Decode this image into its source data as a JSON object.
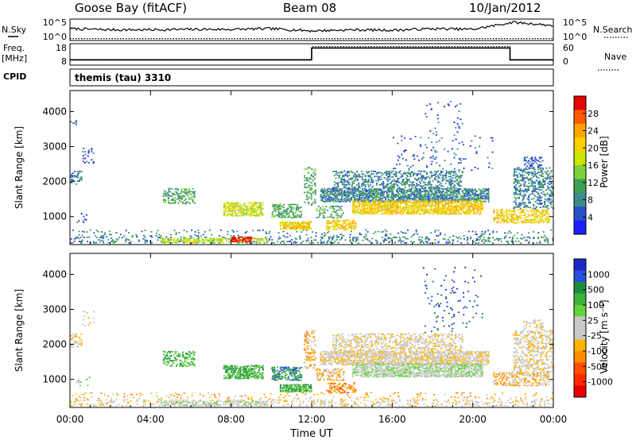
{
  "header": {
    "station": "Goose Bay (fitACF)",
    "beam": "Beam 08",
    "date": "10/Jan/2012"
  },
  "chart_data": [
    {
      "type": "line",
      "panel": "noise",
      "left_label": "N.Sky",
      "right_label": "N.Search",
      "left_ticks": [
        "10^5",
        "10^0"
      ],
      "right_ticks": [
        "10^5",
        "10^0"
      ],
      "x": [
        "00:00",
        "02:00",
        "04:00",
        "06:00",
        "08:00",
        "10:00",
        "12:00",
        "14:00",
        "16:00",
        "18:00",
        "20:00",
        "22:00",
        "23:59"
      ],
      "series": [
        {
          "name": "N.Sky",
          "style": "solid",
          "values": [
            0.55,
            0.5,
            0.5,
            0.52,
            0.52,
            0.55,
            0.45,
            0.5,
            0.48,
            0.55,
            0.52,
            0.85,
            0.7
          ]
        },
        {
          "name": "N.Search",
          "style": "dotted",
          "values": [
            0.05,
            0.05,
            0.05,
            0.05,
            0.05,
            0.05,
            0.05,
            0.05,
            0.05,
            0.05,
            0.05,
            0.05,
            0.05
          ]
        }
      ]
    },
    {
      "type": "line",
      "panel": "frequency",
      "left_label": "Freq.",
      "left_unit": "[MHz]",
      "right_label": "Nave",
      "left_ticks": [
        "18",
        "8"
      ],
      "right_ticks": [
        "60",
        "0"
      ],
      "ylim_left": [
        8,
        18
      ],
      "ylim_right": [
        0,
        60
      ],
      "series": [
        {
          "name": "Freq.",
          "style": "solid",
          "steps": [
            [
              0,
              10.5
            ],
            [
              12.0,
              10.5
            ],
            [
              12.0,
              16
            ],
            [
              21.85,
              16
            ],
            [
              21.85,
              10.5
            ],
            [
              24,
              10.5
            ]
          ]
        },
        {
          "name": "Nave",
          "style": "dotted",
          "steps": [
            [
              0,
              14
            ],
            [
              12.0,
              14
            ],
            [
              12.0,
              52
            ],
            [
              21.85,
              52
            ],
            [
              21.85,
              14
            ],
            [
              24,
              14
            ]
          ]
        }
      ]
    },
    {
      "type": "table",
      "panel": "cpid",
      "label": "CPID",
      "value": "themis (tau) 3310"
    },
    {
      "type": "heatmap",
      "panel": "power",
      "ylabel": "Slant Range [km]",
      "ylim": [
        200,
        4600
      ],
      "yticks": [
        1000,
        2000,
        3000,
        4000
      ],
      "xlim": [
        0,
        24
      ],
      "colorbar": {
        "label": "Power [dB]",
        "ticks": [
          "28",
          "24",
          "20",
          "16",
          "12",
          "8",
          "4"
        ],
        "colors": [
          "#e60000",
          "#ff5a00",
          "#ffa500",
          "#ffd000",
          "#c8e600",
          "#7dd23c",
          "#3ca050",
          "#3c8c8c",
          "#2850c8",
          "#1e1eff"
        ]
      },
      "regions": [
        {
          "t": [
            0.0,
            24.0
          ],
          "r": [
            220,
            420
          ],
          "dens": 0.28,
          "lvl": 2
        },
        {
          "t": [
            0.0,
            24.0
          ],
          "r": [
            420,
            620
          ],
          "dens": 0.12,
          "lvl": 2
        },
        {
          "t": [
            4.5,
            9.8
          ],
          "r": [
            230,
            380
          ],
          "dens": 0.6,
          "lvl": 5
        },
        {
          "t": [
            8.0,
            9.0
          ],
          "r": [
            260,
            420
          ],
          "dens": 0.9,
          "lvl": 9
        },
        {
          "t": [
            0.0,
            0.6
          ],
          "r": [
            1900,
            2300
          ],
          "dens": 0.5,
          "lvl": 2
        },
        {
          "t": [
            0.0,
            0.35
          ],
          "r": [
            3600,
            3800
          ],
          "dens": 0.25,
          "lvl": 1
        },
        {
          "t": [
            0.6,
            1.2
          ],
          "r": [
            2500,
            2950
          ],
          "dens": 0.25,
          "lvl": 1
        },
        {
          "t": [
            0.3,
            1.0
          ],
          "r": [
            800,
            1100
          ],
          "dens": 0.2,
          "lvl": 1
        },
        {
          "t": [
            4.6,
            6.2
          ],
          "r": [
            1350,
            1800
          ],
          "dens": 0.55,
          "lvl": 3
        },
        {
          "t": [
            7.6,
            9.6
          ],
          "r": [
            1000,
            1400
          ],
          "dens": 0.75,
          "lvl": 5
        },
        {
          "t": [
            10.0,
            11.5
          ],
          "r": [
            950,
            1350
          ],
          "dens": 0.6,
          "lvl": 3
        },
        {
          "t": [
            10.4,
            12.0
          ],
          "r": [
            620,
            850
          ],
          "dens": 0.85,
          "lvl": 6
        },
        {
          "t": [
            11.6,
            12.2
          ],
          "r": [
            1300,
            2400
          ],
          "dens": 0.45,
          "lvl": 3
        },
        {
          "t": [
            12.2,
            13.6
          ],
          "r": [
            950,
            1300
          ],
          "dens": 0.45,
          "lvl": 3
        },
        {
          "t": [
            12.7,
            14.2
          ],
          "r": [
            600,
            900
          ],
          "dens": 0.75,
          "lvl": 6
        },
        {
          "t": [
            12.4,
            20.8
          ],
          "r": [
            1400,
            1800
          ],
          "dens": 0.8,
          "lvl": 2
        },
        {
          "t": [
            14.0,
            20.5
          ],
          "r": [
            1050,
            1450
          ],
          "dens": 0.85,
          "lvl": 6
        },
        {
          "t": [
            13.0,
            19.5
          ],
          "r": [
            1800,
            2300
          ],
          "dens": 0.45,
          "lvl": 2
        },
        {
          "t": [
            16.0,
            21.0
          ],
          "r": [
            2300,
            3300
          ],
          "dens": 0.07,
          "lvl": 1
        },
        {
          "t": [
            17.5,
            19.5
          ],
          "r": [
            3300,
            4300
          ],
          "dens": 0.05,
          "lvl": 1
        },
        {
          "t": [
            21.0,
            23.8
          ],
          "r": [
            800,
            1200
          ],
          "dens": 0.6,
          "lvl": 6
        },
        {
          "t": [
            22.0,
            24.0
          ],
          "r": [
            1200,
            2400
          ],
          "dens": 0.5,
          "lvl": 2
        },
        {
          "t": [
            22.5,
            23.5
          ],
          "r": [
            2400,
            2700
          ],
          "dens": 0.35,
          "lvl": 1
        }
      ]
    },
    {
      "type": "heatmap",
      "panel": "velocity",
      "ylabel": "Slant Range [km]",
      "ylim": [
        200,
        4600
      ],
      "yticks": [
        1000,
        2000,
        3000,
        4000
      ],
      "xlim": [
        0,
        24
      ],
      "xticks": [
        "00:00",
        "04:00",
        "08:00",
        "12:00",
        "16:00",
        "20:00",
        "00:00"
      ],
      "xlabel": "Time UT",
      "colorbar": {
        "label": "Velocity [m s⁻¹]",
        "ticks": [
          "1000",
          "500",
          "100",
          "25",
          "-25",
          "-100",
          "-500",
          "-1000"
        ],
        "colors": [
          "#1e28c8",
          "#2850dc",
          "#1e8c3c",
          "#3cb43c",
          "#64d23c",
          "#c8c8c8",
          "#c8c8c8",
          "#ffb400",
          "#ff8c00",
          "#ff5000",
          "#ff2800",
          "#e60000"
        ]
      },
      "regions": [
        {
          "t": [
            0.0,
            24.0
          ],
          "r": [
            220,
            420
          ],
          "dens": 0.3,
          "lvl": 5
        },
        {
          "t": [
            0.0,
            24.0
          ],
          "r": [
            420,
            620
          ],
          "dens": 0.12,
          "lvl": 4
        },
        {
          "t": [
            4.5,
            9.8
          ],
          "r": [
            230,
            380
          ],
          "dens": 0.55,
          "lvl": 6
        },
        {
          "t": [
            0.0,
            0.6
          ],
          "r": [
            1900,
            2300
          ],
          "dens": 0.5,
          "lvl": 5
        },
        {
          "t": [
            0.6,
            1.2
          ],
          "r": [
            2500,
            2950
          ],
          "dens": 0.2,
          "lvl": 5
        },
        {
          "t": [
            0.3,
            1.0
          ],
          "r": [
            800,
            1100
          ],
          "dens": 0.2,
          "lvl": 7
        },
        {
          "t": [
            4.6,
            6.2
          ],
          "r": [
            1350,
            1800
          ],
          "dens": 0.55,
          "lvl": 8
        },
        {
          "t": [
            7.6,
            9.6
          ],
          "r": [
            1000,
            1400
          ],
          "dens": 0.75,
          "lvl": 8
        },
        {
          "t": [
            10.0,
            11.5
          ],
          "r": [
            950,
            1350
          ],
          "dens": 0.6,
          "lvl": 9
        },
        {
          "t": [
            10.4,
            12.0
          ],
          "r": [
            620,
            850
          ],
          "dens": 0.85,
          "lvl": 8
        },
        {
          "t": [
            11.6,
            12.2
          ],
          "r": [
            1300,
            2400
          ],
          "dens": 0.45,
          "lvl": 4
        },
        {
          "t": [
            12.2,
            13.6
          ],
          "r": [
            950,
            1300
          ],
          "dens": 0.55,
          "lvl": 4
        },
        {
          "t": [
            12.7,
            14.2
          ],
          "r": [
            600,
            900
          ],
          "dens": 0.6,
          "lvl": 3
        },
        {
          "t": [
            12.4,
            20.8
          ],
          "r": [
            1400,
            1800
          ],
          "dens": 0.8,
          "lvl": 5
        },
        {
          "t": [
            14.0,
            20.5
          ],
          "r": [
            1050,
            1450
          ],
          "dens": 0.85,
          "lvl": 6
        },
        {
          "t": [
            13.0,
            19.5
          ],
          "r": [
            1800,
            2300
          ],
          "dens": 0.45,
          "lvl": 5
        },
        {
          "t": [
            17.5,
            20.5
          ],
          "r": [
            2300,
            4200
          ],
          "dens": 0.06,
          "lvl": 10
        },
        {
          "t": [
            21.0,
            23.8
          ],
          "r": [
            800,
            1200
          ],
          "dens": 0.55,
          "lvl": 4
        },
        {
          "t": [
            22.0,
            24.0
          ],
          "r": [
            1200,
            2400
          ],
          "dens": 0.5,
          "lvl": 5
        },
        {
          "t": [
            22.5,
            23.5
          ],
          "r": [
            2400,
            2700
          ],
          "dens": 0.35,
          "lvl": 5
        }
      ]
    }
  ]
}
